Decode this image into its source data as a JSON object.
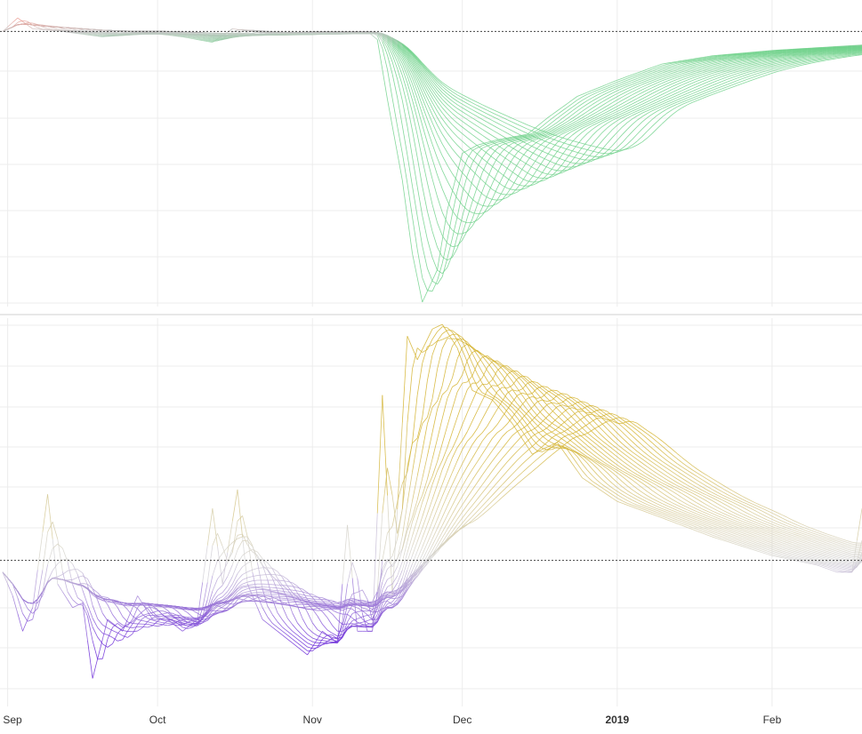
{
  "chart_data": [
    {
      "type": "line",
      "panel": "top",
      "title": "",
      "xlabel": "",
      "ylabel": "",
      "x_range": [
        "2018-08-31",
        "2019-02-19"
      ],
      "y_range": [
        -1.0,
        0.09
      ],
      "y_reference_line": 0,
      "grid": true,
      "legend": "none",
      "color_up": "#f1948a",
      "color_down": "#6fd18a",
      "color_neutral": "#c8c8c8",
      "curve_count": 24,
      "key_series": {
        "name": "",
        "points": [
          [
            "2018-08-31",
            0.0
          ],
          [
            "2018-09-03",
            0.05
          ],
          [
            "2018-09-06",
            0.01
          ],
          [
            "2018-09-12",
            0.0
          ],
          [
            "2018-09-20",
            -0.02
          ],
          [
            "2018-09-27",
            0.0
          ],
          [
            "2018-10-06",
            -0.02
          ],
          [
            "2018-10-12",
            -0.04
          ],
          [
            "2018-10-16",
            0.01
          ],
          [
            "2018-10-24",
            -0.01
          ],
          [
            "2018-11-01",
            0.0
          ],
          [
            "2018-11-06",
            0.0
          ],
          [
            "2018-11-12",
            0.0
          ],
          [
            "2018-11-14",
            -0.03
          ],
          [
            "2018-11-16",
            -0.25
          ],
          [
            "2018-11-19",
            -0.55
          ],
          [
            "2018-11-21",
            -0.82
          ],
          [
            "2018-11-23",
            -1.0
          ],
          [
            "2018-11-26",
            -0.88
          ],
          [
            "2018-11-28",
            -0.66
          ],
          [
            "2018-12-01",
            -0.45
          ],
          [
            "2018-12-04",
            -0.42
          ],
          [
            "2018-12-08",
            -0.4
          ],
          [
            "2018-12-14",
            -0.38
          ],
          [
            "2018-12-18",
            -0.32
          ],
          [
            "2018-12-24",
            -0.24
          ],
          [
            "2019-01-01",
            -0.18
          ],
          [
            "2019-01-10",
            -0.12
          ],
          [
            "2019-01-20",
            -0.09
          ],
          [
            "2019-02-01",
            -0.07
          ],
          [
            "2019-02-10",
            -0.06
          ],
          [
            "2019-02-19",
            -0.05
          ]
        ]
      }
    },
    {
      "type": "line",
      "panel": "bottom",
      "title": "",
      "xlabel": "",
      "ylabel": "",
      "x_range": [
        "2018-08-31",
        "2019-02-19"
      ],
      "y_range": [
        -0.6,
        1.0
      ],
      "y_reference_line": 0,
      "grid": true,
      "legend": "none",
      "color_high": "#d4b22c",
      "color_mid": "#d6d6d6",
      "color_low": "#6a28d8",
      "curve_count": 24,
      "key_series": {
        "name": "",
        "points": [
          [
            "2018-08-31",
            -0.05
          ],
          [
            "2018-09-02",
            -0.15
          ],
          [
            "2018-09-04",
            -0.3
          ],
          [
            "2018-09-06",
            -0.2
          ],
          [
            "2018-09-09",
            0.28
          ],
          [
            "2018-09-11",
            -0.1
          ],
          [
            "2018-09-14",
            -0.2
          ],
          [
            "2018-09-16",
            -0.18
          ],
          [
            "2018-09-18",
            -0.5
          ],
          [
            "2018-09-21",
            -0.25
          ],
          [
            "2018-09-24",
            -0.3
          ],
          [
            "2018-09-27",
            -0.15
          ],
          [
            "2018-09-30",
            -0.25
          ],
          [
            "2018-10-03",
            -0.25
          ],
          [
            "2018-10-06",
            -0.3
          ],
          [
            "2018-10-09",
            -0.25
          ],
          [
            "2018-10-12",
            0.22
          ],
          [
            "2018-10-14",
            -0.1
          ],
          [
            "2018-10-17",
            0.3
          ],
          [
            "2018-10-19",
            -0.1
          ],
          [
            "2018-10-22",
            -0.25
          ],
          [
            "2018-10-25",
            -0.3
          ],
          [
            "2018-10-28",
            -0.35
          ],
          [
            "2018-10-31",
            -0.4
          ],
          [
            "2018-11-03",
            -0.3
          ],
          [
            "2018-11-06",
            -0.35
          ],
          [
            "2018-11-08",
            0.15
          ],
          [
            "2018-11-10",
            -0.3
          ],
          [
            "2018-11-13",
            -0.3
          ],
          [
            "2018-11-15",
            0.7
          ],
          [
            "2018-11-17",
            -0.15
          ],
          [
            "2018-11-20",
            0.95
          ],
          [
            "2018-11-22",
            0.85
          ],
          [
            "2018-11-25",
            0.98
          ],
          [
            "2018-11-27",
            1.0
          ],
          [
            "2018-11-30",
            0.9
          ],
          [
            "2018-12-03",
            0.72
          ],
          [
            "2018-12-07",
            0.68
          ],
          [
            "2018-12-11",
            0.58
          ],
          [
            "2018-12-15",
            0.45
          ],
          [
            "2018-12-20",
            0.5
          ],
          [
            "2018-12-25",
            0.35
          ],
          [
            "2019-01-01",
            0.25
          ],
          [
            "2019-01-10",
            0.18
          ],
          [
            "2019-01-20",
            0.1
          ],
          [
            "2019-02-01",
            0.02
          ],
          [
            "2019-02-10",
            -0.02
          ],
          [
            "2019-02-14",
            -0.05
          ],
          [
            "2019-02-17",
            -0.05
          ],
          [
            "2019-02-19",
            0.22
          ]
        ]
      }
    }
  ],
  "x_axis": {
    "ticks": [
      {
        "date": "2018-09-01",
        "label": "Sep",
        "bold": false
      },
      {
        "date": "2018-10-01",
        "label": "Oct",
        "bold": false
      },
      {
        "date": "2018-11-01",
        "label": "Nov",
        "bold": false
      },
      {
        "date": "2018-12-01",
        "label": "Dec",
        "bold": false
      },
      {
        "date": "2019-01-01",
        "label": "2019",
        "bold": true
      },
      {
        "date": "2019-02-01",
        "label": "Feb",
        "bold": false
      }
    ]
  }
}
